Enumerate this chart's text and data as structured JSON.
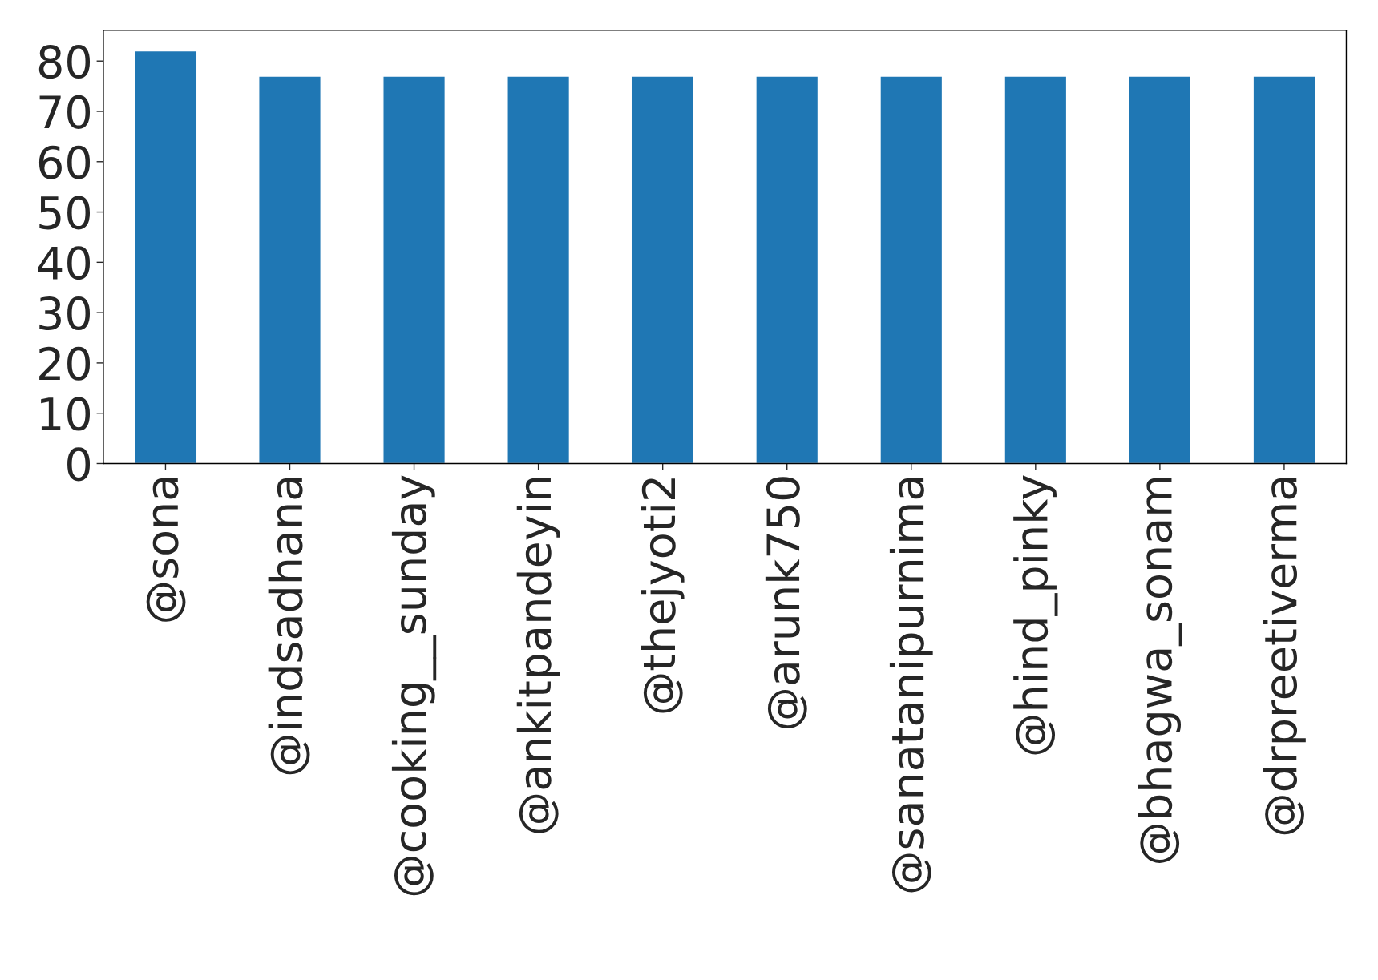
{
  "chart_data": {
    "type": "bar",
    "categories": [
      "@sona",
      "@indsadhana",
      "@cooking__sunday",
      "@ankitpandeyin",
      "@thejyoti2",
      "@arunk750",
      "@sanatanipurnima",
      "@hind_pinky",
      "@bhagwa_sonam",
      "@drpreetiverma"
    ],
    "values": [
      82,
      77,
      77,
      77,
      77,
      77,
      77,
      77,
      77,
      77
    ],
    "color": "#1f77b4",
    "ylim": [
      0,
      86.1
    ],
    "yticks": [
      0,
      10,
      20,
      30,
      40,
      50,
      60,
      70,
      80
    ],
    "grid": false,
    "legend": false
  }
}
